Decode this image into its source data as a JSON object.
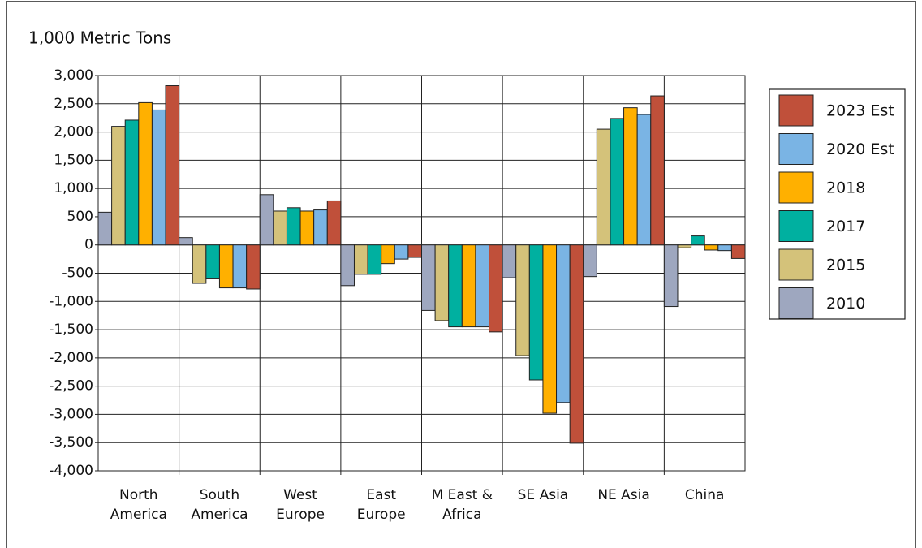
{
  "chart_data": {
    "type": "bar",
    "title": "1,000 Metric Tons",
    "categories": [
      "North America",
      "South America",
      "West Europe",
      "East Europe",
      "M East & Africa",
      "SE Asia",
      "NE Asia",
      "China"
    ],
    "series": [
      {
        "name": "2010",
        "color": "#9ea7bf",
        "values": [
          580,
          130,
          890,
          -720,
          -1160,
          -580,
          -560,
          -1090
        ]
      },
      {
        "name": "2015",
        "color": "#d4c27a",
        "values": [
          2100,
          -680,
          600,
          -520,
          -1340,
          -1960,
          2050,
          -50
        ]
      },
      {
        "name": "2017",
        "color": "#00b0a0",
        "values": [
          2210,
          -600,
          660,
          -520,
          -1450,
          -2390,
          2240,
          160
        ]
      },
      {
        "name": "2018",
        "color": "#ffb000",
        "values": [
          2520,
          -760,
          600,
          -330,
          -1450,
          -2980,
          2430,
          -90
        ]
      },
      {
        "name": "2020 Est",
        "color": "#7ab4e4",
        "values": [
          2390,
          -760,
          620,
          -250,
          -1450,
          -2790,
          2310,
          -100
        ]
      },
      {
        "name": "2023 Est",
        "color": "#c0503a",
        "values": [
          2820,
          -780,
          780,
          -220,
          -1540,
          -3510,
          2640,
          -240
        ]
      }
    ],
    "ylim": [
      -4000,
      3000
    ],
    "yticks": [
      {
        "value": 3000,
        "label": "3,000"
      },
      {
        "value": 2500,
        "label": "2,500"
      },
      {
        "value": 2000,
        "label": "2,000"
      },
      {
        "value": 1500,
        "label": "1,500"
      },
      {
        "value": 1000,
        "label": "1,000"
      },
      500,
      0,
      -500,
      {
        "value": -1000,
        "label": "-1,000"
      },
      {
        "value": -1500,
        "label": "-1,500"
      },
      {
        "value": -2000,
        "label": "-2,000"
      },
      {
        "value": -2500,
        "label": "-2,500"
      },
      {
        "value": -3000,
        "label": "-3,000"
      },
      {
        "value": -3500,
        "label": "-3,500"
      },
      {
        "value": -4000,
        "label": "-4,000"
      }
    ],
    "grid": true
  }
}
